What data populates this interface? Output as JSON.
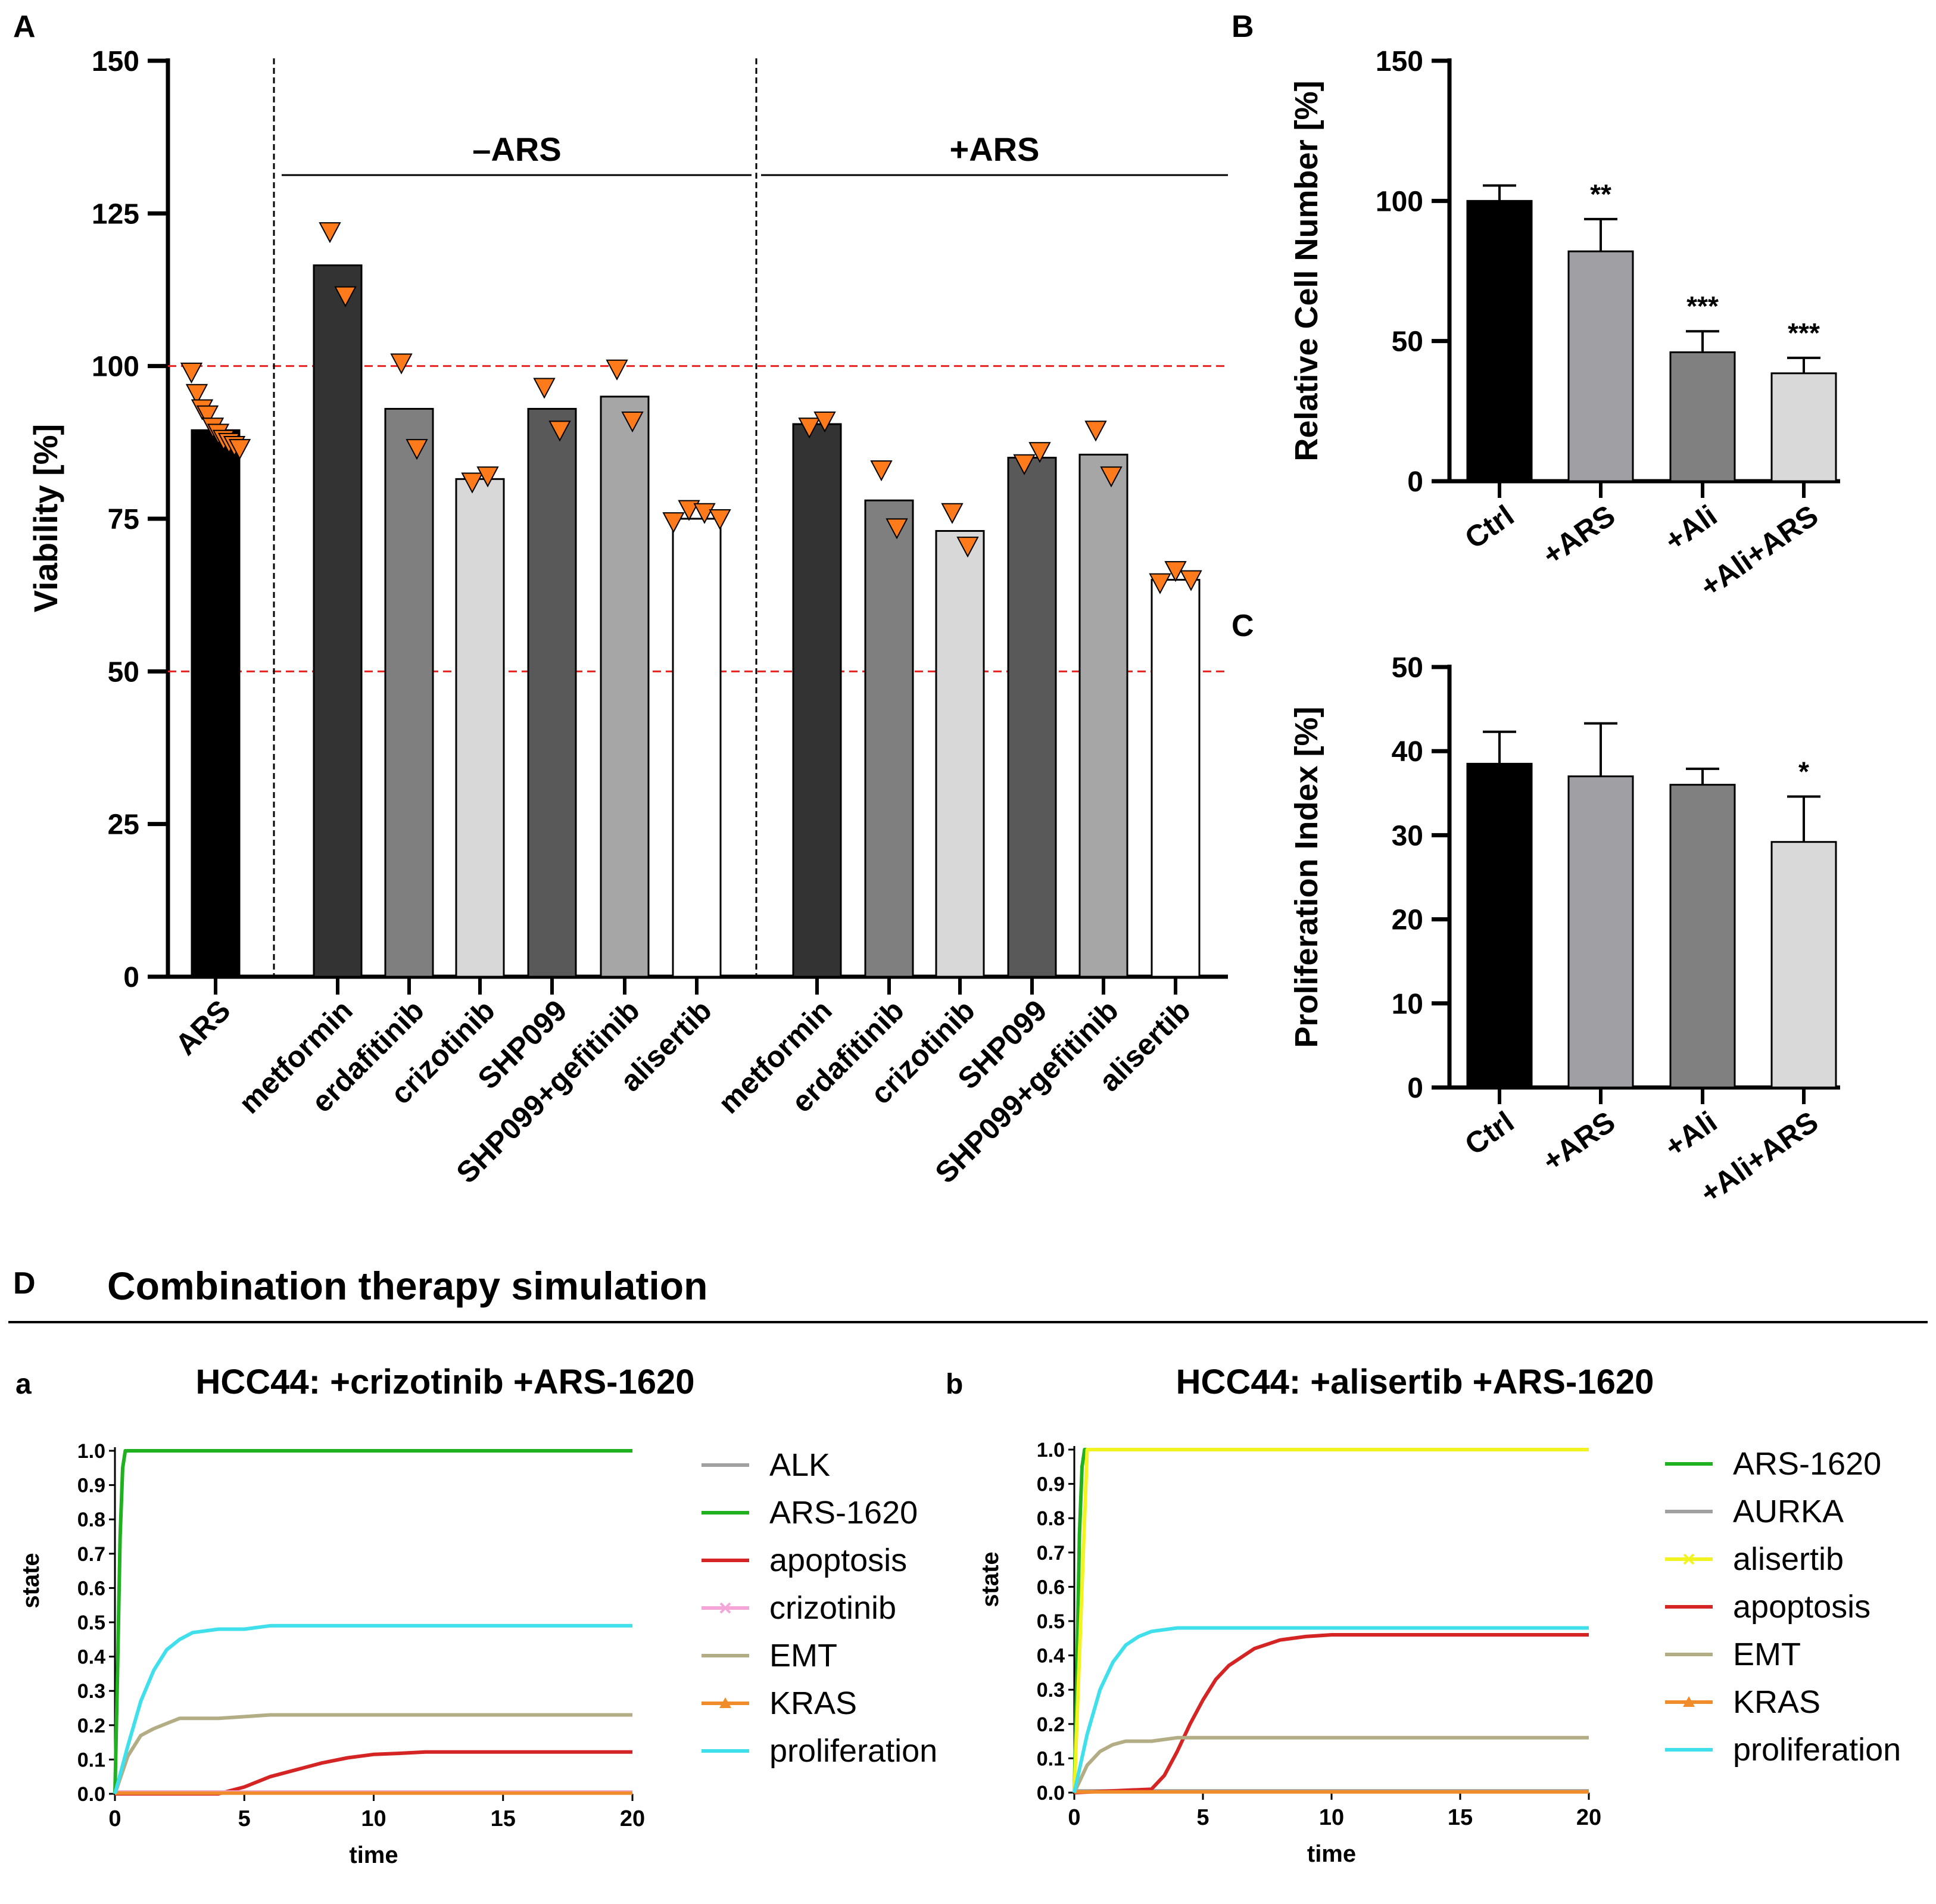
{
  "colors": {
    "orange": "#ff7a1a",
    "red_dash": "#e8221e",
    "grid_axis": "#000000"
  },
  "chart_data": [
    {
      "panel": "A",
      "type": "bar",
      "ylabel": "Viability [%]",
      "ylim": [
        0,
        150
      ],
      "yticks": [
        "0",
        "25",
        "50",
        "75",
        "100",
        "125",
        "150"
      ],
      "reference_lines": [
        50,
        100
      ],
      "group_labels": [
        "–ARS",
        "+ARS"
      ],
      "bars": [
        {
          "label": "ARS",
          "value": 89.5,
          "fill": "#000000",
          "points": [
            99,
            95.5,
            93,
            92,
            90,
            89,
            88,
            87.5,
            87,
            86.5
          ]
        },
        {
          "label": "metformin",
          "value": 116.5,
          "fill": "#333333",
          "points": [
            122,
            111.5
          ]
        },
        {
          "label": "erdafitinib",
          "value": 93,
          "fill": "#7f7f7f",
          "points": [
            100.5,
            86.5
          ]
        },
        {
          "label": "crizotinib",
          "value": 81.5,
          "fill": "#d8d8d8",
          "points": [
            81,
            82
          ]
        },
        {
          "label": "SHP099",
          "value": 93,
          "fill": "#595959",
          "points": [
            96.5,
            89.5
          ]
        },
        {
          "label": "SHP099+gefitinib",
          "value": 95,
          "fill": "#a6a6a6",
          "points": [
            99.5,
            91
          ]
        },
        {
          "label": "alisertib",
          "value": 75,
          "fill": "#ffffff",
          "points": [
            74.5,
            76.5,
            76,
            75
          ]
        },
        {
          "label": "metformin",
          "value": 90.5,
          "fill": "#333333",
          "points": [
            90,
            91
          ]
        },
        {
          "label": "erdafitinib",
          "value": 78,
          "fill": "#7f7f7f",
          "points": [
            83,
            73.5
          ]
        },
        {
          "label": "crizotinib",
          "value": 73,
          "fill": "#d8d8d8",
          "points": [
            76,
            70.5
          ]
        },
        {
          "label": "SHP099",
          "value": 85,
          "fill": "#595959",
          "points": [
            84,
            86
          ]
        },
        {
          "label": "SHP099+gefitinib",
          "value": 85.5,
          "fill": "#a6a6a6",
          "points": [
            89.5,
            82
          ]
        },
        {
          "label": "alisertib",
          "value": 65,
          "fill": "#ffffff",
          "points": [
            64.5,
            66.5,
            65
          ]
        }
      ]
    },
    {
      "panel": "B",
      "type": "bar",
      "ylabel": "Relative Cell Number [%]",
      "ylim": [
        0,
        150
      ],
      "yticks": [
        "0",
        "50",
        "100",
        "150"
      ],
      "bars": [
        {
          "label": "Ctrl",
          "value": 100,
          "err": 5.5,
          "sig": "",
          "fill": "#000000"
        },
        {
          "label": "+ARS",
          "value": 82,
          "err": 11.5,
          "sig": "**",
          "fill": "#a0a0a4"
        },
        {
          "label": "+Ali",
          "value": 46,
          "err": 7.5,
          "sig": "***",
          "fill": "#808080"
        },
        {
          "label": "+Ali+ARS",
          "value": 38.5,
          "err": 5.5,
          "sig": "***",
          "fill": "#d9d9d9"
        }
      ]
    },
    {
      "panel": "C",
      "type": "bar",
      "ylabel": "Proliferation Index [%]",
      "ylim": [
        0,
        50
      ],
      "yticks": [
        "0",
        "10",
        "20",
        "30",
        "40",
        "50"
      ],
      "bars": [
        {
          "label": "Ctrl",
          "value": 38.5,
          "err": 3.8,
          "sig": "",
          "fill": "#000000"
        },
        {
          "label": "+ARS",
          "value": 37,
          "err": 6.3,
          "sig": "",
          "fill": "#a0a0a4"
        },
        {
          "label": "+Ali",
          "value": 36,
          "err": 1.9,
          "sig": "",
          "fill": "#808080"
        },
        {
          "label": "+Ali+ARS",
          "value": 29.2,
          "err": 5.4,
          "sig": "*",
          "fill": "#d9d9d9"
        }
      ]
    },
    {
      "panel": "a",
      "type": "line",
      "title": "HCC44: +crizotinib +ARS-1620",
      "xlabel": "time",
      "ylabel": "state",
      "xlim": [
        0,
        20
      ],
      "ylim": [
        0,
        1
      ],
      "xticks": [
        "0",
        "5",
        "10",
        "15",
        "20"
      ],
      "yticks": [
        "0.0",
        "0.1",
        "0.2",
        "0.3",
        "0.4",
        "0.5",
        "0.6",
        "0.7",
        "0.8",
        "0.9",
        "1.0"
      ],
      "series": [
        {
          "name": "ALK",
          "color": "#a0a0a0",
          "marker": "",
          "x": [
            0,
            20
          ],
          "y": [
            0.005,
            0.005
          ]
        },
        {
          "name": "ARS-1620",
          "color": "#1fb11f",
          "marker": "",
          "x": [
            0,
            0.1,
            0.2,
            0.3,
            0.4,
            0.5,
            20
          ],
          "y": [
            0,
            0.35,
            0.75,
            0.95,
            1,
            1,
            1
          ]
        },
        {
          "name": "apoptosis",
          "color": "#d42424",
          "marker": "",
          "x": [
            0,
            4,
            5,
            6,
            7,
            8,
            9,
            10,
            11,
            12,
            20
          ],
          "y": [
            0,
            0,
            0.02,
            0.05,
            0.07,
            0.09,
            0.105,
            0.115,
            0.118,
            0.122,
            0.122
          ]
        },
        {
          "name": "crizotinib",
          "color": "#f5a6d8",
          "marker": "x",
          "x": [
            0,
            20
          ],
          "y": [
            0.005,
            0.005
          ]
        },
        {
          "name": "EMT",
          "color": "#b3ad86",
          "marker": "",
          "x": [
            0,
            0.5,
            1,
            1.5,
            2,
            2.5,
            3,
            4,
            6,
            20
          ],
          "y": [
            0,
            0.11,
            0.17,
            0.19,
            0.205,
            0.22,
            0.22,
            0.22,
            0.23,
            0.23
          ]
        },
        {
          "name": "KRAS",
          "color": "#f08d2a",
          "marker": "triangle",
          "x": [
            0,
            20
          ],
          "y": [
            0.002,
            0.002
          ]
        },
        {
          "name": "proliferation",
          "color": "#3fe0ec",
          "marker": "",
          "x": [
            0,
            0.5,
            1,
            1.5,
            2,
            2.5,
            3,
            4,
            5,
            6,
            20
          ],
          "y": [
            0,
            0.14,
            0.27,
            0.36,
            0.42,
            0.45,
            0.47,
            0.48,
            0.48,
            0.49,
            0.49
          ]
        }
      ]
    },
    {
      "panel": "b",
      "type": "line",
      "title": "HCC44: +alisertib +ARS-1620",
      "xlabel": "time",
      "ylabel": "state",
      "xlim": [
        0,
        20
      ],
      "ylim": [
        0,
        1
      ],
      "xticks": [
        "0",
        "5",
        "10",
        "15",
        "20"
      ],
      "yticks": [
        "0.0",
        "0.1",
        "0.2",
        "0.3",
        "0.4",
        "0.5",
        "0.6",
        "0.7",
        "0.8",
        "0.9",
        "1.0"
      ],
      "series": [
        {
          "name": "ARS-1620",
          "color": "#1fb11f",
          "marker": "",
          "x": [
            0,
            0.1,
            0.2,
            0.3,
            0.4,
            0.5,
            20
          ],
          "y": [
            0,
            0.35,
            0.75,
            0.95,
            1,
            1,
            1
          ]
        },
        {
          "name": "AURKA",
          "color": "#a0a0a0",
          "marker": "",
          "x": [
            0,
            20
          ],
          "y": [
            0.005,
            0.005
          ]
        },
        {
          "name": "alisertib",
          "color": "#f3f31f",
          "marker": "x",
          "x": [
            0,
            0.5,
            20
          ],
          "y": [
            0,
            1,
            1
          ]
        },
        {
          "name": "apoptosis",
          "color": "#d42424",
          "marker": "",
          "x": [
            0,
            3,
            3.5,
            4,
            4.5,
            5,
            5.5,
            6,
            7,
            8,
            9,
            10,
            20
          ],
          "y": [
            0,
            0.01,
            0.05,
            0.12,
            0.2,
            0.27,
            0.33,
            0.37,
            0.42,
            0.445,
            0.455,
            0.46,
            0.46
          ]
        },
        {
          "name": "EMT",
          "color": "#b3ad86",
          "marker": "",
          "x": [
            0,
            0.5,
            1,
            1.5,
            2,
            3,
            4,
            20
          ],
          "y": [
            0,
            0.08,
            0.12,
            0.14,
            0.15,
            0.15,
            0.16,
            0.16
          ]
        },
        {
          "name": "KRAS",
          "color": "#f08d2a",
          "marker": "triangle",
          "x": [
            0,
            20
          ],
          "y": [
            0.002,
            0.002
          ]
        },
        {
          "name": "proliferation",
          "color": "#3fe0ec",
          "marker": "",
          "x": [
            0,
            0.5,
            1,
            1.5,
            2,
            2.5,
            3,
            4,
            20
          ],
          "y": [
            0,
            0.17,
            0.3,
            0.38,
            0.43,
            0.455,
            0.47,
            0.48,
            0.48
          ]
        }
      ]
    }
  ],
  "panel_letters": {
    "A": "A",
    "B": "B",
    "C": "C",
    "D": "D",
    "a": "a",
    "b": "b"
  },
  "section_title": "Combination therapy simulation"
}
